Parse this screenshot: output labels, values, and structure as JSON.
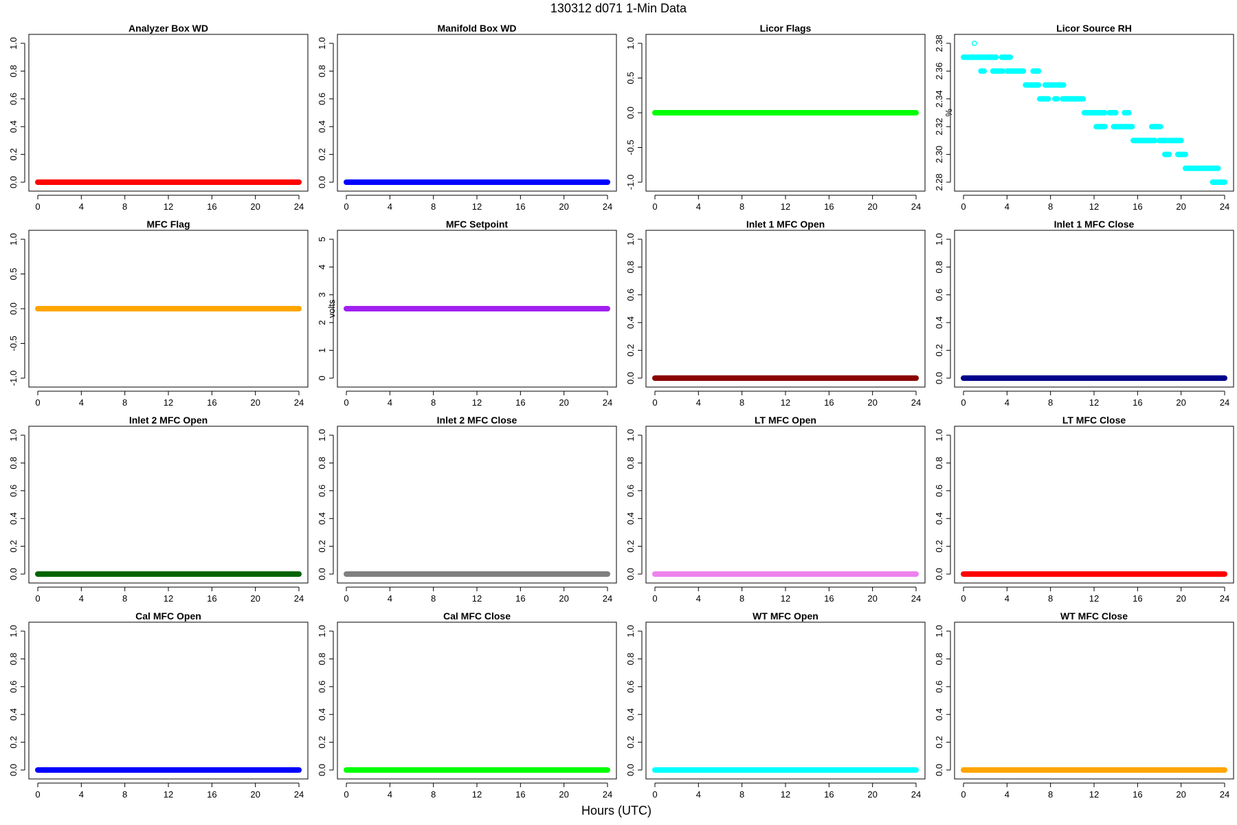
{
  "header": {
    "title": "130312   d071   1-Min Data",
    "xlabel": "Hours (UTC)"
  },
  "chart_data": [
    {
      "type": "scatter",
      "title": "Analyzer Box WD",
      "ylabel": "",
      "color": "#ff0000",
      "xlim": [
        0,
        24
      ],
      "ylim": [
        0,
        1
      ],
      "x_ticks": [
        0,
        4,
        8,
        12,
        16,
        20,
        24
      ],
      "y_ticks": [
        "0.0",
        "0.2",
        "0.4",
        "0.6",
        "0.8",
        "1.0"
      ],
      "x": [
        0,
        24
      ],
      "y": [
        0,
        0
      ]
    },
    {
      "type": "scatter",
      "title": "Manifold Box WD",
      "ylabel": "",
      "color": "#0000ff",
      "xlim": [
        0,
        24
      ],
      "ylim": [
        0,
        1
      ],
      "x_ticks": [
        0,
        4,
        8,
        12,
        16,
        20,
        24
      ],
      "y_ticks": [
        "0.0",
        "0.2",
        "0.4",
        "0.6",
        "0.8",
        "1.0"
      ],
      "x": [
        0,
        24
      ],
      "y": [
        0,
        0
      ]
    },
    {
      "type": "scatter",
      "title": "Licor Flags",
      "ylabel": "",
      "color": "#00ff00",
      "xlim": [
        0,
        24
      ],
      "ylim": [
        -1,
        1
      ],
      "x_ticks": [
        0,
        4,
        8,
        12,
        16,
        20,
        24
      ],
      "y_ticks": [
        "-1.0",
        "-0.5",
        "0.0",
        "0.5",
        "1.0"
      ],
      "x": [
        0,
        24
      ],
      "y": [
        0,
        0
      ]
    },
    {
      "type": "scatter",
      "title": "Licor Source RH",
      "ylabel": "%",
      "color": "#00ffff",
      "xlim": [
        0,
        24
      ],
      "ylim": [
        2.28,
        2.38
      ],
      "x_ticks": [
        0,
        4,
        8,
        12,
        16,
        20,
        24
      ],
      "y_ticks": [
        "2.28",
        "2.30",
        "2.32",
        "2.34",
        "2.36",
        "2.38"
      ],
      "segments": [
        {
          "x": [
            0,
            2.7
          ],
          "y": 2.37
        },
        {
          "x": [
            1.0,
            1.0
          ],
          "y": 2.38
        },
        {
          "x": [
            1.6,
            1.9
          ],
          "y": 2.36
        },
        {
          "x": [
            2.4,
            3.0
          ],
          "y": 2.37
        },
        {
          "x": [
            2.7,
            3.6
          ],
          "y": 2.36
        },
        {
          "x": [
            3.5,
            4.3
          ],
          "y": 2.37
        },
        {
          "x": [
            4.0,
            5.5
          ],
          "y": 2.36
        },
        {
          "x": [
            5.7,
            6.9
          ],
          "y": 2.35
        },
        {
          "x": [
            6.4,
            6.9
          ],
          "y": 2.36
        },
        {
          "x": [
            7.0,
            7.8
          ],
          "y": 2.34
        },
        {
          "x": [
            7.5,
            9.2
          ],
          "y": 2.35
        },
        {
          "x": [
            8.4,
            8.6
          ],
          "y": 2.34
        },
        {
          "x": [
            9.1,
            11.0
          ],
          "y": 2.34
        },
        {
          "x": [
            11.1,
            13.0
          ],
          "y": 2.33
        },
        {
          "x": [
            12.2,
            13.0
          ],
          "y": 2.32
        },
        {
          "x": [
            13.4,
            14.0
          ],
          "y": 2.33
        },
        {
          "x": [
            13.8,
            15.5
          ],
          "y": 2.32
        },
        {
          "x": [
            14.8,
            15.2
          ],
          "y": 2.33
        },
        {
          "x": [
            15.6,
            17.6
          ],
          "y": 2.31
        },
        {
          "x": [
            17.3,
            18.1
          ],
          "y": 2.32
        },
        {
          "x": [
            18.0,
            18.7
          ],
          "y": 2.31
        },
        {
          "x": [
            18.5,
            18.9
          ],
          "y": 2.3
        },
        {
          "x": [
            18.9,
            20.0
          ],
          "y": 2.31
        },
        {
          "x": [
            19.7,
            20.4
          ],
          "y": 2.3
        },
        {
          "x": [
            20.4,
            23.4
          ],
          "y": 2.29
        },
        {
          "x": [
            22.9,
            24.0
          ],
          "y": 2.28
        }
      ]
    },
    {
      "type": "scatter",
      "title": "MFC Flag",
      "ylabel": "",
      "color": "#ffa500",
      "xlim": [
        0,
        24
      ],
      "ylim": [
        -1,
        1
      ],
      "x_ticks": [
        0,
        4,
        8,
        12,
        16,
        20,
        24
      ],
      "y_ticks": [
        "-1.0",
        "-0.5",
        "0.0",
        "0.5",
        "1.0"
      ],
      "x": [
        0,
        24
      ],
      "y": [
        0,
        0
      ]
    },
    {
      "type": "scatter",
      "title": "MFC Setpoint",
      "ylabel": "volts",
      "color": "#a020f0",
      "xlim": [
        0,
        24
      ],
      "ylim": [
        0,
        5
      ],
      "x_ticks": [
        0,
        4,
        8,
        12,
        16,
        20,
        24
      ],
      "y_ticks": [
        "0",
        "1",
        "2",
        "3",
        "4",
        "5"
      ],
      "x": [
        0,
        24
      ],
      "y": [
        2.5,
        2.5
      ]
    },
    {
      "type": "scatter",
      "title": "Inlet 1 MFC Open",
      "ylabel": "",
      "color": "#8b0000",
      "xlim": [
        0,
        24
      ],
      "ylim": [
        0,
        1
      ],
      "x_ticks": [
        0,
        4,
        8,
        12,
        16,
        20,
        24
      ],
      "y_ticks": [
        "0.0",
        "0.2",
        "0.4",
        "0.6",
        "0.8",
        "1.0"
      ],
      "x": [
        0,
        24
      ],
      "y": [
        0,
        0
      ]
    },
    {
      "type": "scatter",
      "title": "Inlet 1 MFC Close",
      "ylabel": "",
      "color": "#00008b",
      "xlim": [
        0,
        24
      ],
      "ylim": [
        0,
        1
      ],
      "x_ticks": [
        0,
        4,
        8,
        12,
        16,
        20,
        24
      ],
      "y_ticks": [
        "0.0",
        "0.2",
        "0.4",
        "0.6",
        "0.8",
        "1.0"
      ],
      "x": [
        0,
        24
      ],
      "y": [
        0,
        0
      ]
    },
    {
      "type": "scatter",
      "title": "Inlet 2 MFC Open",
      "ylabel": "",
      "color": "#006400",
      "xlim": [
        0,
        24
      ],
      "ylim": [
        0,
        1
      ],
      "x_ticks": [
        0,
        4,
        8,
        12,
        16,
        20,
        24
      ],
      "y_ticks": [
        "0.0",
        "0.2",
        "0.4",
        "0.6",
        "0.8",
        "1.0"
      ],
      "x": [
        0,
        24
      ],
      "y": [
        0,
        0
      ]
    },
    {
      "type": "scatter",
      "title": "Inlet 2 MFC Close",
      "ylabel": "",
      "color": "#808080",
      "xlim": [
        0,
        24
      ],
      "ylim": [
        0,
        1
      ],
      "x_ticks": [
        0,
        4,
        8,
        12,
        16,
        20,
        24
      ],
      "y_ticks": [
        "0.0",
        "0.2",
        "0.4",
        "0.6",
        "0.8",
        "1.0"
      ],
      "x": [
        0,
        24
      ],
      "y": [
        0,
        0
      ]
    },
    {
      "type": "scatter",
      "title": "LT MFC Open",
      "ylabel": "",
      "color": "#ee82ee",
      "xlim": [
        0,
        24
      ],
      "ylim": [
        0,
        1
      ],
      "x_ticks": [
        0,
        4,
        8,
        12,
        16,
        20,
        24
      ],
      "y_ticks": [
        "0.0",
        "0.2",
        "0.4",
        "0.6",
        "0.8",
        "1.0"
      ],
      "x": [
        0,
        24
      ],
      "y": [
        0,
        0
      ]
    },
    {
      "type": "scatter",
      "title": "LT MFC Close",
      "ylabel": "",
      "color": "#ff0000",
      "xlim": [
        0,
        24
      ],
      "ylim": [
        0,
        1
      ],
      "x_ticks": [
        0,
        4,
        8,
        12,
        16,
        20,
        24
      ],
      "y_ticks": [
        "0.0",
        "0.2",
        "0.4",
        "0.6",
        "0.8",
        "1.0"
      ],
      "x": [
        0,
        24
      ],
      "y": [
        0,
        0
      ]
    },
    {
      "type": "scatter",
      "title": "Cal MFC Open",
      "ylabel": "",
      "color": "#0000ff",
      "xlim": [
        0,
        24
      ],
      "ylim": [
        0,
        1
      ],
      "x_ticks": [
        0,
        4,
        8,
        12,
        16,
        20,
        24
      ],
      "y_ticks": [
        "0.0",
        "0.2",
        "0.4",
        "0.6",
        "0.8",
        "1.0"
      ],
      "x": [
        0,
        24
      ],
      "y": [
        0,
        0
      ]
    },
    {
      "type": "scatter",
      "title": "Cal MFC Close",
      "ylabel": "",
      "color": "#00ff00",
      "xlim": [
        0,
        24
      ],
      "ylim": [
        0,
        1
      ],
      "x_ticks": [
        0,
        4,
        8,
        12,
        16,
        20,
        24
      ],
      "y_ticks": [
        "0.0",
        "0.2",
        "0.4",
        "0.6",
        "0.8",
        "1.0"
      ],
      "x": [
        0,
        24
      ],
      "y": [
        0,
        0
      ]
    },
    {
      "type": "scatter",
      "title": "WT MFC Open",
      "ylabel": "",
      "color": "#00ffff",
      "xlim": [
        0,
        24
      ],
      "ylim": [
        0,
        1
      ],
      "x_ticks": [
        0,
        4,
        8,
        12,
        16,
        20,
        24
      ],
      "y_ticks": [
        "0.0",
        "0.2",
        "0.4",
        "0.6",
        "0.8",
        "1.0"
      ],
      "x": [
        0,
        24
      ],
      "y": [
        0,
        0
      ]
    },
    {
      "type": "scatter",
      "title": "WT MFC Close",
      "ylabel": "",
      "color": "#ffa500",
      "xlim": [
        0,
        24
      ],
      "ylim": [
        0,
        1
      ],
      "x_ticks": [
        0,
        4,
        8,
        12,
        16,
        20,
        24
      ],
      "y_ticks": [
        "0.0",
        "0.2",
        "0.4",
        "0.6",
        "0.8",
        "1.0"
      ],
      "x": [
        0,
        24
      ],
      "y": [
        0,
        0
      ]
    }
  ]
}
